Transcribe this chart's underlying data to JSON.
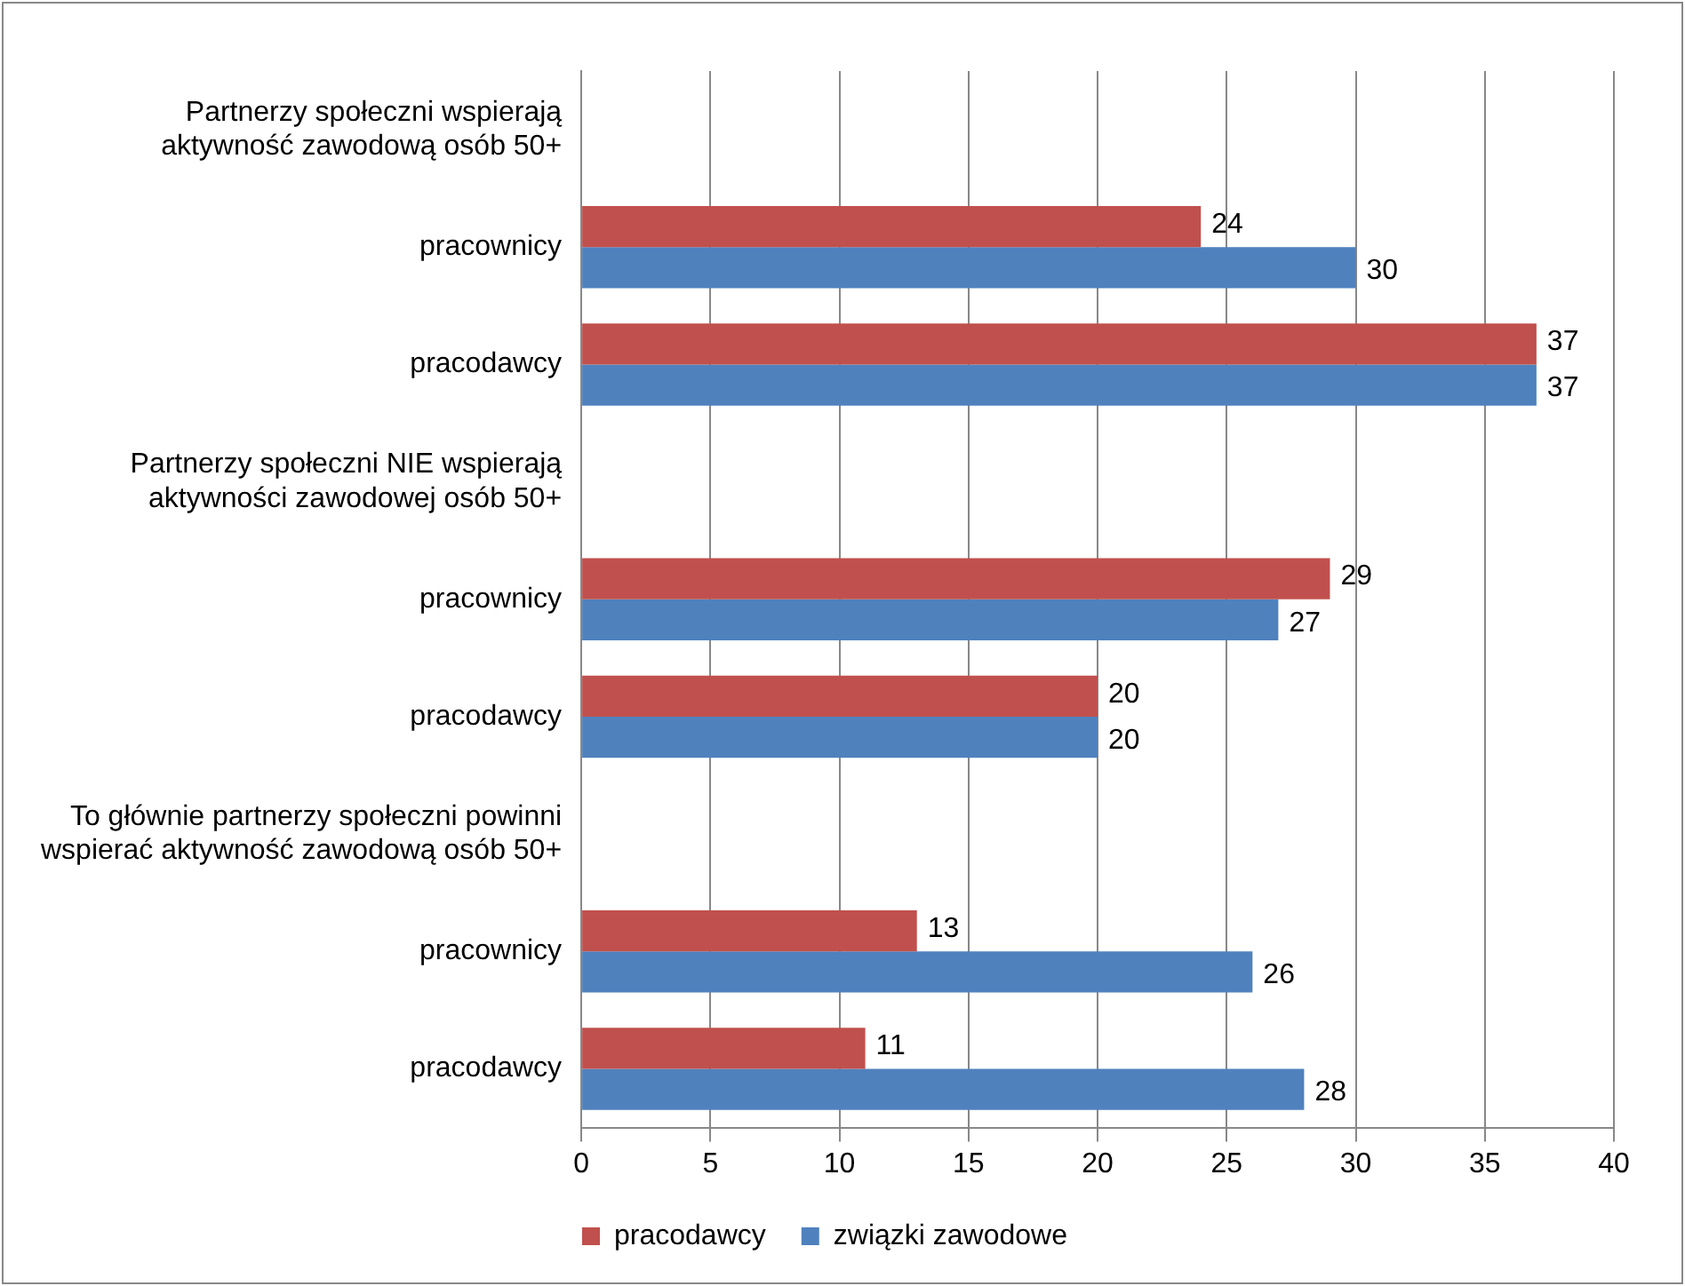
{
  "chart_data": {
    "type": "bar",
    "orientation": "horizontal",
    "categories": [
      "Partnerzy społeczni wspierają aktywność zawodową osób 50+",
      "pracownicy",
      "pracodawcy",
      "Partnerzy społeczni NIE wspierają aktywności zawodowej osób 50+",
      "pracownicy",
      "pracodawcy",
      "To głównie partnerzy społeczni powinni wspierać aktywność zawodową osób 50+",
      "pracownicy",
      "pracodawcy"
    ],
    "series": [
      {
        "name": "pracodawcy",
        "color": "#c0504d",
        "values": [
          null,
          24,
          37,
          null,
          29,
          20,
          null,
          13,
          11
        ]
      },
      {
        "name": "związki zawodowe",
        "color": "#4f81bd",
        "values": [
          null,
          30,
          37,
          null,
          27,
          20,
          null,
          26,
          28
        ]
      }
    ],
    "xlim": [
      0,
      40
    ],
    "xticks": [
      0,
      5,
      10,
      15,
      20,
      25,
      30,
      35,
      40
    ],
    "grid": "x",
    "legend": "bottom",
    "data_labels": true
  }
}
